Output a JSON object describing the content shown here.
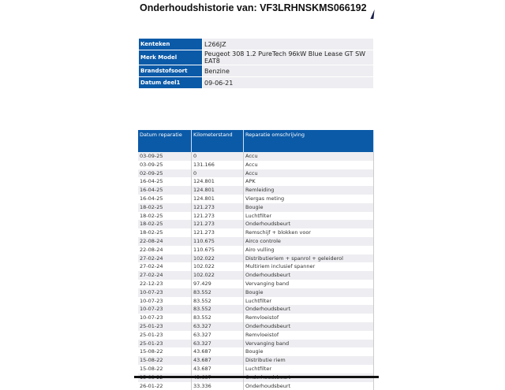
{
  "title": "Onderhoudshistorie van: VF3LRHNSKMS066192",
  "vehicle": [
    {
      "label": "Kenteken",
      "value": "L266JZ"
    },
    {
      "label": "Merk Model",
      "value": "Peugeot 308 1.2 PureTech 96kW Blue Lease GT SW EAT8"
    },
    {
      "label": "Brandstofsoort",
      "value": "Benzine"
    },
    {
      "label": "Datum deel1",
      "value": "09-06-21"
    }
  ],
  "history": {
    "headers": [
      "Datum reparatie",
      "Kilometerstand",
      "Reparatie omschrijving"
    ],
    "rows": [
      [
        "03-09-25",
        "0",
        "Accu"
      ],
      [
        "03-09-25",
        "131.166",
        "Accu"
      ],
      [
        "02-09-25",
        "0",
        "Accu"
      ],
      [
        "16-04-25",
        "124.801",
        "APK"
      ],
      [
        "16-04-25",
        "124.801",
        "Remleiding"
      ],
      [
        "16-04-25",
        "124.801",
        "Viergas meting"
      ],
      [
        "18-02-25",
        "121.273",
        "Bougie"
      ],
      [
        "18-02-25",
        "121.273",
        "Luchtfilter"
      ],
      [
        "18-02-25",
        "121.273",
        "Onderhoudsbeurt"
      ],
      [
        "18-02-25",
        "121.273",
        "Remschijf + blokken voor"
      ],
      [
        "22-08-24",
        "110.675",
        "Airco controle"
      ],
      [
        "22-08-24",
        "110.675",
        "Airo vulling"
      ],
      [
        "27-02-24",
        "102.022",
        "Distributieriem + spanrol + geleiderol"
      ],
      [
        "27-02-24",
        "102.022",
        "Multiriem inclusief spanner"
      ],
      [
        "27-02-24",
        "102.022",
        "Onderhoudsbeurt"
      ],
      [
        "22-12-23",
        "97.429",
        "Vervanging band"
      ],
      [
        "10-07-23",
        "83.552",
        "Bougie"
      ],
      [
        "10-07-23",
        "83.552",
        "Luchtfilter"
      ],
      [
        "10-07-23",
        "83.552",
        "Onderhoudsbeurt"
      ],
      [
        "10-07-23",
        "83.552",
        "Remvloeistof"
      ],
      [
        "25-01-23",
        "63.327",
        "Onderhoudsbeurt"
      ],
      [
        "25-01-23",
        "63.327",
        "Remvloeistof"
      ],
      [
        "25-01-23",
        "63.327",
        "Vervanging band"
      ],
      [
        "15-08-22",
        "43.687",
        "Bougie"
      ],
      [
        "15-08-22",
        "43.687",
        "Distributie riem"
      ],
      [
        "15-08-22",
        "43.687",
        "Luchtfilter"
      ],
      [
        "15-08-22",
        "43.687",
        "Onderhoudsbeurt"
      ],
      [
        "26-01-22",
        "33.336",
        "Onderhoudsbeurt"
      ]
    ]
  },
  "colors": {
    "header_blue": "#0b5aa8",
    "row_gray": "#eeeef2"
  }
}
